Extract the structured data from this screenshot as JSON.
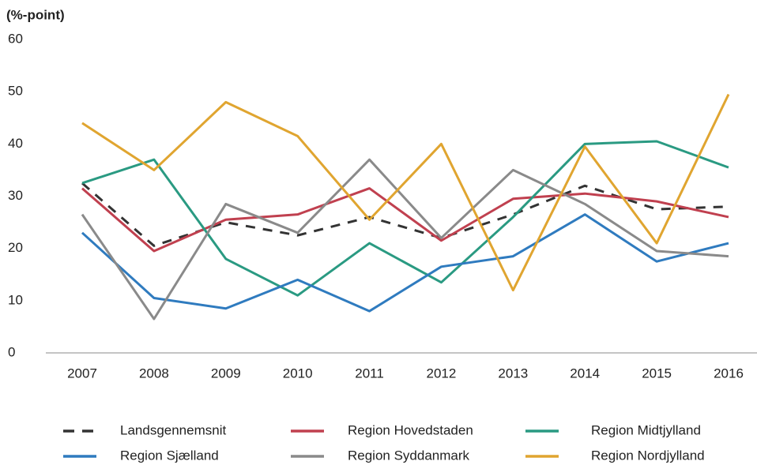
{
  "chart_data": {
    "type": "line",
    "y_label": "(%-point)",
    "categories": [
      "2007",
      "2008",
      "2009",
      "2010",
      "2011",
      "2012",
      "2013",
      "2014",
      "2015",
      "2016"
    ],
    "ylim": [
      0,
      60
    ],
    "yticks": [
      0,
      10,
      20,
      30,
      40,
      50,
      60
    ],
    "grid": false,
    "legend": "bottom",
    "series": [
      {
        "name": "Landsgennemsnit",
        "color": "#333333",
        "dashed": true,
        "values": [
          32.5,
          20.5,
          25,
          22.5,
          26,
          22,
          26.5,
          32,
          27.5,
          28
        ]
      },
      {
        "name": "Region Hovedstaden",
        "color": "#c0404f",
        "values": [
          31.5,
          19.5,
          25.5,
          26.5,
          31.5,
          21.5,
          29.5,
          30.5,
          29,
          26
        ]
      },
      {
        "name": "Region Midtjylland",
        "color": "#2a9a82",
        "values": [
          32.5,
          37,
          18,
          11,
          21,
          13.5,
          26,
          40,
          40.5,
          35.5
        ]
      },
      {
        "name": "Region Sjælland",
        "color": "#2f7bbf",
        "values": [
          23,
          10.5,
          8.5,
          14,
          8,
          16.5,
          18.5,
          26.5,
          17.5,
          21
        ]
      },
      {
        "name": "Region Syddanmark",
        "color": "#8a8a8a",
        "values": [
          26.5,
          6.5,
          28.5,
          23,
          37,
          22,
          35,
          28.5,
          19.5,
          18.5
        ]
      },
      {
        "name": "Region Nordjylland",
        "color": "#e0a530",
        "values": [
          44,
          35,
          48,
          41.5,
          25.5,
          40,
          12,
          39.5,
          21,
          49.5
        ]
      }
    ]
  }
}
